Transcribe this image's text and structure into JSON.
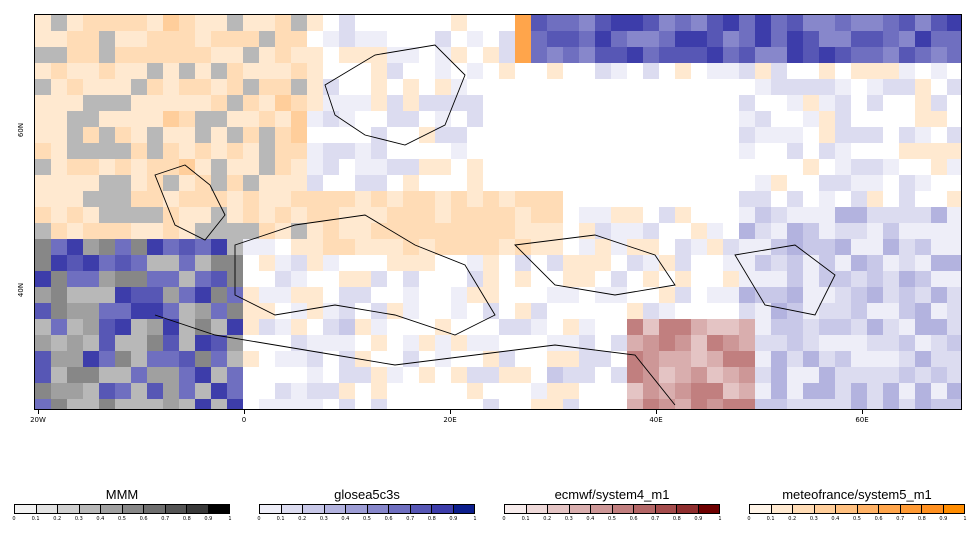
{
  "map": {
    "lat_labels": [
      "60N",
      "40N"
    ],
    "lon_labels": [
      "20W",
      "0",
      "20E",
      "40E",
      "60E"
    ],
    "colors": {
      "land_border": "#000000",
      "background": "#ffffff"
    }
  },
  "legends": [
    {
      "title": "MMM",
      "colors": [
        "#ffffff",
        "#f2f2f2",
        "#e2e2e2",
        "#cfcfcf",
        "#b8b8b8",
        "#a0a0a0",
        "#878787",
        "#6e6e6e",
        "#545454",
        "#393939",
        "#000000"
      ],
      "ticks": [
        "0",
        "0.1",
        "0.2",
        "0.3",
        "0.4",
        "0.5",
        "0.6",
        "0.7",
        "0.8",
        "0.9",
        "1"
      ]
    },
    {
      "title": "glosea5c3s",
      "colors": [
        "#ffffff",
        "#eeeef8",
        "#dcdcf0",
        "#c8c8e8",
        "#b3b3df",
        "#9d9dd5",
        "#8787cb",
        "#6f6fc0",
        "#5757b5",
        "#3d3daa",
        "#0c1e8c"
      ],
      "ticks": [
        "0",
        "0.1",
        "0.2",
        "0.3",
        "0.4",
        "0.5",
        "0.6",
        "0.7",
        "0.8",
        "0.9",
        "1"
      ]
    },
    {
      "title": "ecmwf/system4_m1",
      "colors": [
        "#ffffff",
        "#f7ecec",
        "#eed9d9",
        "#e4c4c4",
        "#d9aeae",
        "#cd9797",
        "#c17f7f",
        "#b36666",
        "#a44c4c",
        "#8f2e2e",
        "#6e0000"
      ],
      "ticks": [
        "0",
        "0.1",
        "0.2",
        "0.3",
        "0.4",
        "0.5",
        "0.6",
        "0.7",
        "0.8",
        "0.9",
        "1"
      ]
    },
    {
      "title": "meteofrance/system5_m1",
      "colors": [
        "#ffffff",
        "#fff4e8",
        "#ffe9d0",
        "#ffdcb6",
        "#ffce9b",
        "#ffc080",
        "#ffb266",
        "#ffa54b",
        "#ff9a34",
        "#ff9020",
        "#ff8c00"
      ],
      "ticks": [
        "0",
        "0.1",
        "0.2",
        "0.3",
        "0.4",
        "0.5",
        "0.6",
        "0.7",
        "0.8",
        "0.9",
        "1"
      ]
    }
  ]
}
